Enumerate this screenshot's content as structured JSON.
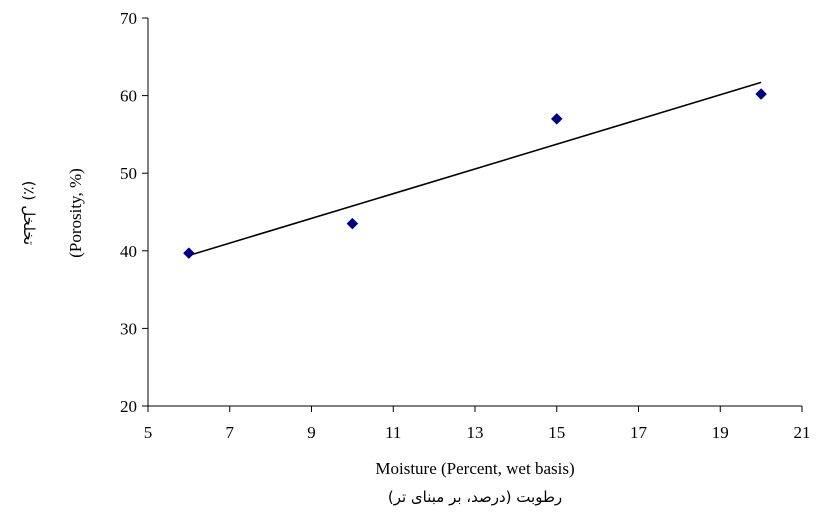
{
  "chart_data": {
    "type": "scatter",
    "title": "",
    "xlabel": "Moisture (Percent, wet basis)",
    "xlabel_fa": "رطوبت (درصد، بر مبنای تر)",
    "ylabel": "(Porosity, %)",
    "ylabel_fa": "تخلخل (٪)",
    "xlim": [
      5,
      21
    ],
    "ylim": [
      20,
      70
    ],
    "xticks": [
      5,
      7,
      9,
      11,
      13,
      15,
      17,
      19,
      21
    ],
    "yticks": [
      20,
      30,
      40,
      50,
      60,
      70
    ],
    "grid": false,
    "legend": "none",
    "series": [
      {
        "x": [
          6,
          10,
          15,
          20
        ],
        "y": [
          39.7,
          43.5,
          57.0,
          60.2
        ],
        "marker": "diamond",
        "color": "#000080"
      }
    ],
    "trendline": {
      "x": [
        6,
        20
      ],
      "y": [
        39.4,
        61.7
      ],
      "color": "#000000"
    }
  }
}
